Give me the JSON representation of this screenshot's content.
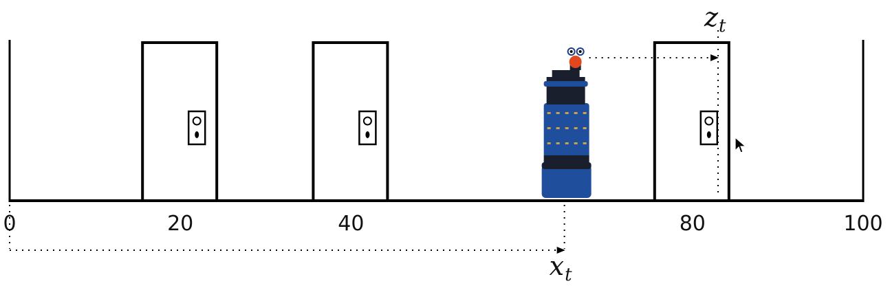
{
  "axis": {
    "min": 0,
    "max": 100,
    "tick_labels": [
      {
        "value": 0,
        "text": "0"
      },
      {
        "value": 20,
        "text": "20"
      },
      {
        "value": 40,
        "text": "40"
      },
      {
        "value": 80,
        "text": "80"
      },
      {
        "value": 100,
        "text": "100"
      }
    ]
  },
  "doors": [
    {
      "position": 20
    },
    {
      "position": 40
    },
    {
      "position": 80
    }
  ],
  "robot": {
    "position": 65
  },
  "measurement": {
    "label_var": "z",
    "label_sub": "t",
    "position": 83
  },
  "state": {
    "label_var": "x",
    "label_sub": "t",
    "position": 65
  },
  "colors": {
    "line": "#000000",
    "robot_body": "#1f4e9c",
    "robot_dark": "#1a1f2e",
    "robot_head": "#e2471f"
  }
}
